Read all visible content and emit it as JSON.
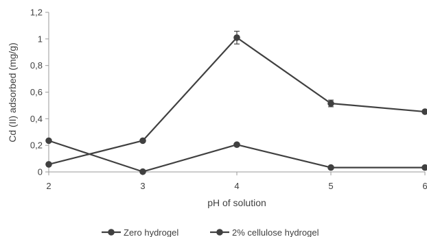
{
  "chart_data": {
    "type": "line",
    "title": "",
    "xlabel": "pH of solution",
    "ylabel": "Cd (II) adsorbed (mg/g)",
    "x": [
      2,
      3,
      4,
      5,
      6
    ],
    "x_tick_labels": [
      "2",
      "3",
      "4",
      "5",
      "6"
    ],
    "ylim": [
      0,
      1.2
    ],
    "y_ticks": [
      0,
      0.2,
      0.4,
      0.6,
      0.8,
      1,
      1.2
    ],
    "y_tick_labels": [
      "0",
      "0,2",
      "0,4",
      "0,6",
      "0,8",
      "1",
      "1,2"
    ],
    "grid": false,
    "legend_position": "bottom",
    "series": [
      {
        "name": "Zero hydrogel",
        "values": [
          0.235,
          0.002,
          0.205,
          0.033,
          0.033
        ],
        "color": "#404040"
      },
      {
        "name": "2% cellulose hydrogel",
        "values": [
          0.057,
          0.235,
          1.01,
          0.515,
          0.453
        ],
        "errors": [
          0.0,
          0.0,
          0.048,
          0.025,
          0.01
        ],
        "color": "#404040"
      }
    ]
  }
}
